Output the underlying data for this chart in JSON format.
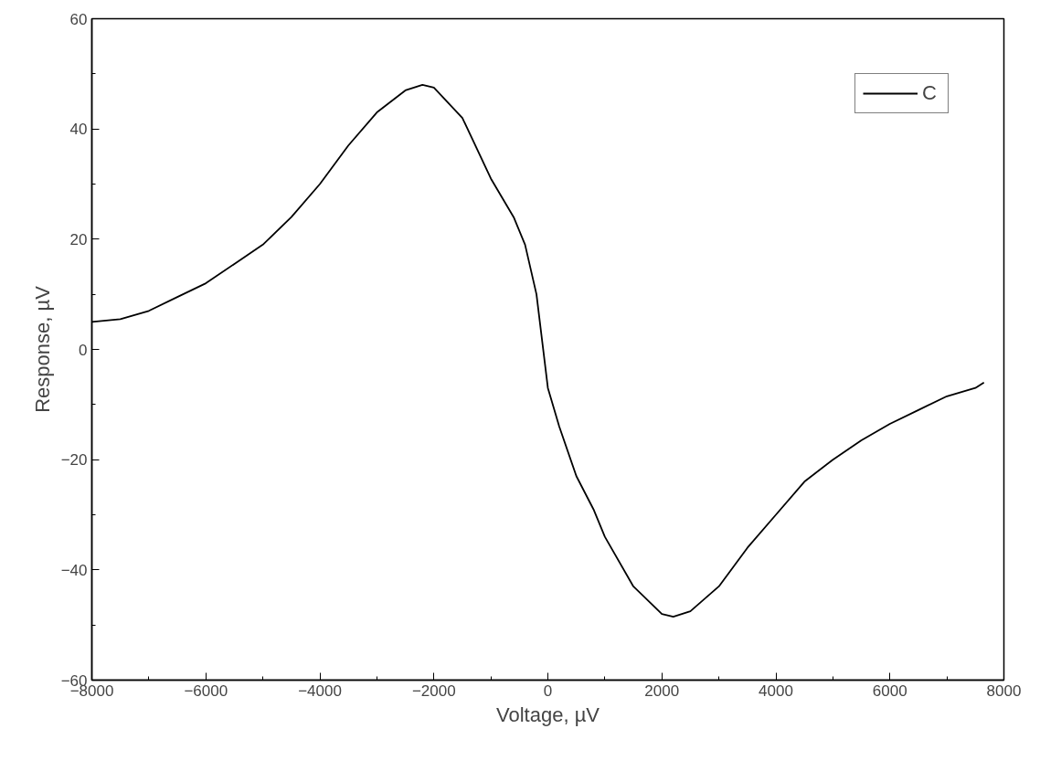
{
  "chart_data": {
    "type": "line",
    "xlabel": "Voltage, µV",
    "ylabel": "Response, µV",
    "x": [
      -8000,
      -7500,
      -7000,
      -6500,
      -6000,
      -5500,
      -5000,
      -4500,
      -4000,
      -3500,
      -3000,
      -2500,
      -2200,
      -2000,
      -1500,
      -1000,
      -600,
      -400,
      -200,
      0,
      200,
      500,
      800,
      1000,
      1500,
      2000,
      2200,
      2500,
      3000,
      3500,
      4000,
      4500,
      5000,
      5500,
      6000,
      6500,
      7000,
      7500,
      7650
    ],
    "series": [
      {
        "name": "C",
        "color": "#000000",
        "values": [
          5,
          5.5,
          7,
          9.5,
          12,
          15.5,
          19,
          24,
          30,
          37,
          43,
          47,
          48,
          47.5,
          42,
          31,
          24,
          19,
          10,
          -7,
          -14,
          -23,
          -29,
          -34,
          -43,
          -48,
          -48.5,
          -47.5,
          -43,
          -36,
          -30,
          -24,
          -20,
          -16.5,
          -13.5,
          -11,
          -8.5,
          -7,
          -6
        ]
      }
    ],
    "xlim": [
      -8000,
      8000
    ],
    "ylim": [
      -60,
      60
    ],
    "xticks": [
      -8000,
      -6000,
      -4000,
      -2000,
      0,
      2000,
      4000,
      6000,
      8000
    ],
    "yticks": [
      -60,
      -40,
      -20,
      0,
      20,
      40,
      60
    ],
    "grid": false,
    "legend": "top right",
    "marker": "none",
    "line_style": "solid"
  }
}
